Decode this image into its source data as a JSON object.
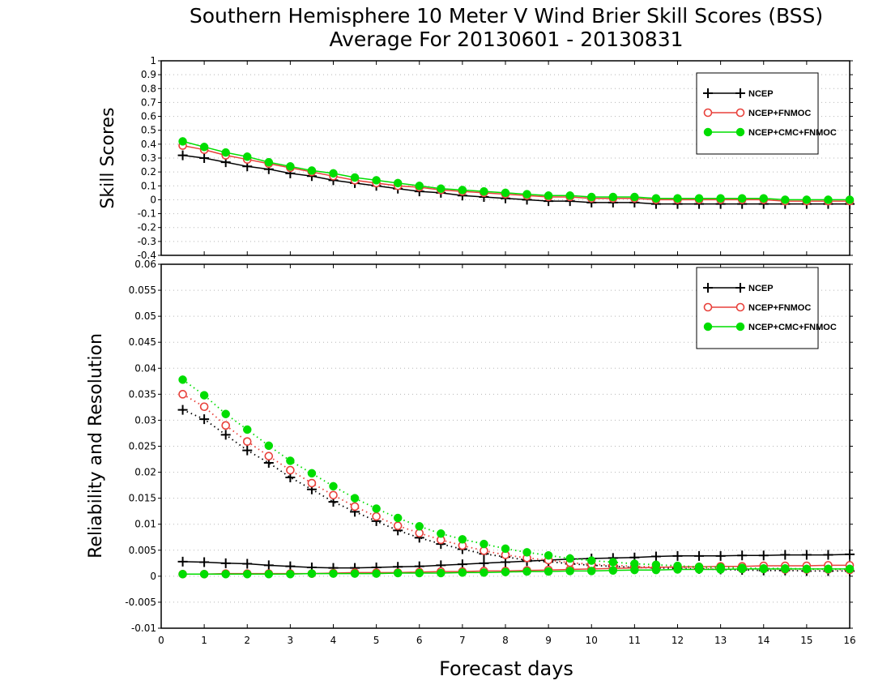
{
  "title_line1": "Southern Hemisphere 10 Meter V Wind Brier Skill Scores (BSS)",
  "title_line2": "Average For 20130601 - 20130831",
  "colors": {
    "NCEP": "#000000",
    "NCEP+FNMOC": "#e8413b",
    "NCEP+CMC+FNMOC": "#00dd00"
  },
  "chart_data": [
    {
      "type": "line",
      "panel": "top",
      "ylabel": "Skill Scores",
      "xlabel": "Forecast days",
      "xlim": [
        0,
        16
      ],
      "ylim": [
        -0.4,
        1
      ],
      "x_ticks": [
        0,
        1,
        2,
        3,
        4,
        5,
        6,
        7,
        8,
        9,
        10,
        11,
        12,
        13,
        14,
        15,
        16
      ],
      "y_ticks": [
        -0.4,
        -0.3,
        -0.2,
        -0.1,
        0,
        0.1,
        0.2,
        0.3,
        0.4,
        0.5,
        0.6,
        0.7,
        0.8,
        0.9,
        1
      ],
      "y_tick_labels": [
        "-0.4",
        "-0.3",
        "-0.2",
        "-0.1",
        "0",
        "0.1",
        "0.2",
        "0.3",
        "0.4",
        "0.5",
        "0.6",
        "0.7",
        "0.8",
        "0.9",
        "1"
      ],
      "grid": true,
      "legend_position": "top-right",
      "x": [
        0.5,
        1,
        1.5,
        2,
        2.5,
        3,
        3.5,
        4,
        4.5,
        5,
        5.5,
        6,
        6.5,
        7,
        7.5,
        8,
        8.5,
        9,
        9.5,
        10,
        10.5,
        11,
        11.5,
        12,
        12.5,
        13,
        13.5,
        14,
        14.5,
        15,
        15.5,
        16
      ],
      "series": [
        {
          "name": "NCEP",
          "marker": "plus",
          "linestyle": "solid",
          "color": "#000000",
          "values": [
            0.32,
            0.3,
            0.27,
            0.24,
            0.22,
            0.19,
            0.17,
            0.14,
            0.12,
            0.1,
            0.08,
            0.06,
            0.05,
            0.03,
            0.02,
            0.01,
            0.0,
            -0.01,
            -0.01,
            -0.02,
            -0.02,
            -0.02,
            -0.03,
            -0.03,
            -0.03,
            -0.03,
            -0.03,
            -0.03,
            -0.03,
            -0.03,
            -0.03,
            -0.03
          ]
        },
        {
          "name": "NCEP+FNMOC",
          "marker": "open-circle",
          "linestyle": "solid",
          "color": "#e8413b",
          "values": [
            0.39,
            0.36,
            0.32,
            0.29,
            0.26,
            0.23,
            0.2,
            0.17,
            0.14,
            0.12,
            0.1,
            0.09,
            0.07,
            0.06,
            0.05,
            0.04,
            0.03,
            0.02,
            0.02,
            0.01,
            0.01,
            0.01,
            0.0,
            0.0,
            0.0,
            0.0,
            0.0,
            0.0,
            -0.01,
            -0.01,
            -0.01,
            -0.01
          ]
        },
        {
          "name": "NCEP+CMC+FNMOC",
          "marker": "filled-circle",
          "linestyle": "solid",
          "color": "#00dd00",
          "values": [
            0.42,
            0.38,
            0.34,
            0.31,
            0.27,
            0.24,
            0.21,
            0.19,
            0.16,
            0.14,
            0.12,
            0.1,
            0.08,
            0.07,
            0.06,
            0.05,
            0.04,
            0.03,
            0.03,
            0.02,
            0.02,
            0.02,
            0.01,
            0.01,
            0.01,
            0.01,
            0.01,
            0.01,
            0.0,
            0.0,
            0.0,
            0.0
          ]
        }
      ]
    },
    {
      "type": "line",
      "panel": "bottom",
      "ylabel": "Reliability and Resolution",
      "xlabel": "Forecast days",
      "xlim": [
        0,
        16
      ],
      "ylim": [
        -0.01,
        0.06
      ],
      "x_ticks": [
        0,
        1,
        2,
        3,
        4,
        5,
        6,
        7,
        8,
        9,
        10,
        11,
        12,
        13,
        14,
        15,
        16
      ],
      "y_ticks": [
        -0.01,
        -0.005,
        0,
        0.005,
        0.01,
        0.015,
        0.02,
        0.025,
        0.03,
        0.035,
        0.04,
        0.045,
        0.05,
        0.055,
        0.06
      ],
      "y_tick_labels": [
        "-0.01",
        "-0.005",
        "0",
        "0.005",
        "0.01",
        "0.015",
        "0.02",
        "0.025",
        "0.03",
        "0.035",
        "0.04",
        "0.045",
        "0.05",
        "0.055",
        "0.06"
      ],
      "grid": true,
      "legend_position": "top-right",
      "x": [
        0.5,
        1,
        1.5,
        2,
        2.5,
        3,
        3.5,
        4,
        4.5,
        5,
        5.5,
        6,
        6.5,
        7,
        7.5,
        8,
        8.5,
        9,
        9.5,
        10,
        10.5,
        11,
        11.5,
        12,
        12.5,
        13,
        13.5,
        14,
        14.5,
        15,
        15.5,
        16
      ],
      "series": [
        {
          "name": "NCEP",
          "role": "reliability",
          "marker": "plus",
          "linestyle": "solid",
          "color": "#000000",
          "values": [
            0.0028,
            0.0027,
            0.0025,
            0.0024,
            0.0021,
            0.0019,
            0.0017,
            0.0016,
            0.0016,
            0.0017,
            0.0018,
            0.0019,
            0.0021,
            0.0023,
            0.0025,
            0.0027,
            0.0029,
            0.0031,
            0.0033,
            0.0034,
            0.0035,
            0.0036,
            0.0038,
            0.0039,
            0.0039,
            0.0039,
            0.004,
            0.004,
            0.0041,
            0.0041,
            0.0041,
            0.0042
          ]
        },
        {
          "name": "NCEP",
          "role": "resolution",
          "marker": "plus",
          "linestyle": "dotted",
          "color": "#000000",
          "values": [
            0.032,
            0.0302,
            0.0272,
            0.0242,
            0.0218,
            0.019,
            0.0167,
            0.0143,
            0.0124,
            0.0106,
            0.0088,
            0.0074,
            0.0062,
            0.0052,
            0.0043,
            0.0037,
            0.0031,
            0.0028,
            0.0024,
            0.0021,
            0.0019,
            0.0017,
            0.0016,
            0.0015,
            0.0014,
            0.0013,
            0.0012,
            0.0011,
            0.0011,
            0.001,
            0.001,
            0.001
          ]
        },
        {
          "name": "NCEP+FNMOC",
          "role": "reliability",
          "marker": "open-circle",
          "linestyle": "solid",
          "color": "#e8413b",
          "values": [
            0.0004,
            0.0004,
            0.0005,
            0.0005,
            0.0005,
            0.0005,
            0.0005,
            0.0006,
            0.0007,
            0.0007,
            0.0007,
            0.0008,
            0.0009,
            0.0009,
            0.001,
            0.001,
            0.0011,
            0.0012,
            0.0013,
            0.0014,
            0.0015,
            0.0016,
            0.0017,
            0.0018,
            0.0018,
            0.0019,
            0.0019,
            0.002,
            0.002,
            0.002,
            0.0021,
            0.0021
          ]
        },
        {
          "name": "NCEP+FNMOC",
          "role": "resolution",
          "marker": "open-circle",
          "linestyle": "dotted",
          "color": "#e8413b",
          "values": [
            0.035,
            0.0326,
            0.029,
            0.0259,
            0.0231,
            0.0204,
            0.0179,
            0.0156,
            0.0134,
            0.0115,
            0.0097,
            0.0083,
            0.007,
            0.0059,
            0.0049,
            0.0041,
            0.0035,
            0.0031,
            0.0026,
            0.0023,
            0.0021,
            0.0019,
            0.0018,
            0.0017,
            0.0016,
            0.0015,
            0.0014,
            0.0014,
            0.0013,
            0.0013,
            0.0013,
            0.0012
          ]
        },
        {
          "name": "NCEP+CMC+FNMOC",
          "role": "reliability",
          "marker": "filled-circle",
          "linestyle": "solid",
          "color": "#00dd00",
          "values": [
            0.0004,
            0.0004,
            0.0004,
            0.0004,
            0.0004,
            0.0004,
            0.0005,
            0.0005,
            0.0005,
            0.0005,
            0.0006,
            0.0006,
            0.0006,
            0.0007,
            0.0007,
            0.0008,
            0.0009,
            0.0009,
            0.001,
            0.001,
            0.0011,
            0.0012,
            0.0012,
            0.0013,
            0.0013,
            0.0013,
            0.0014,
            0.0014,
            0.0014,
            0.0014,
            0.0014,
            0.0014
          ]
        },
        {
          "name": "NCEP+CMC+FNMOC",
          "role": "resolution",
          "marker": "filled-circle",
          "linestyle": "dotted",
          "color": "#00dd00",
          "values": [
            0.0378,
            0.0348,
            0.0312,
            0.0282,
            0.0251,
            0.0222,
            0.0198,
            0.0173,
            0.015,
            0.013,
            0.0112,
            0.0096,
            0.0082,
            0.0071,
            0.0062,
            0.0053,
            0.0046,
            0.004,
            0.0034,
            0.003,
            0.0027,
            0.0024,
            0.0022,
            0.002,
            0.0018,
            0.0017,
            0.0016,
            0.0015,
            0.0015,
            0.0014,
            0.0014,
            0.0014
          ]
        }
      ]
    }
  ]
}
